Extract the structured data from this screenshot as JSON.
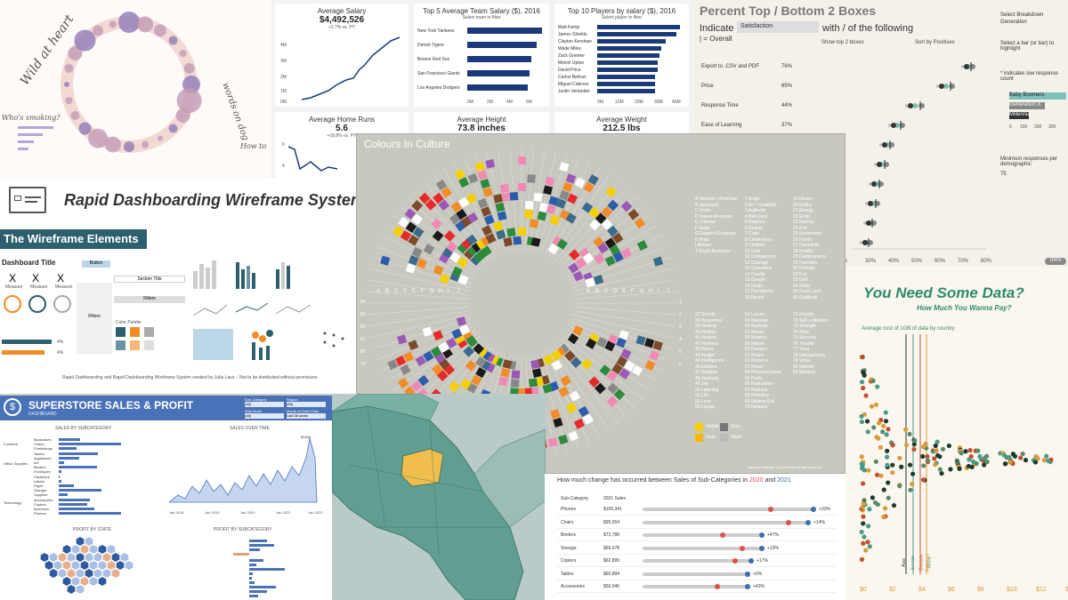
{
  "p1": {
    "title": "Wild at heart",
    "side_text": "words on dog",
    "smoking": "Who's smoking?",
    "howto": "How to"
  },
  "p2": {
    "salary_title": "Average Salary",
    "salary_value": "$4,492,526",
    "salary_sub": "+2.7% vs. PY",
    "team_title": "Top 5 Average Team Salary ($), 2016",
    "team_sub": "Select team to filter",
    "teams": [
      "New York Yankees",
      "Detroit Tigers",
      "Boston Red Sox",
      "San Francisco Giants",
      "Los Angeles Dodgers"
    ],
    "team_values": [
      7.5,
      6.9,
      6.4,
      6.2,
      6.0
    ],
    "team_axis": [
      "0M",
      "2M",
      "4M",
      "6M"
    ],
    "players_title": "Top 10 Players by salary ($), 2016",
    "players_sub": "Select player to filter",
    "players": [
      "Matt Kemp",
      "James Shields",
      "Clayton Kershaw",
      "Wade Miley",
      "Zack Greinke",
      "Melvin Upton",
      "David Price",
      "Carlos Beltran",
      "Miguel Cabrera",
      "Justin Verlander"
    ],
    "player_values": [
      40,
      38,
      33,
      31,
      30,
      29,
      29,
      28,
      28,
      28
    ],
    "player_axis": [
      "0M",
      "10M",
      "20M",
      "30M",
      "40M"
    ],
    "y_axis": [
      "4M",
      "3M",
      "2M",
      "1M",
      "0M"
    ],
    "hr_title": "Average Home Runs",
    "hr_value": "5.6",
    "hr_sub": "+16.8% vs. PY",
    "height_title": "Average Height",
    "height_value": "73.8 inches",
    "weight_title": "Average Weight",
    "weight_value": "212.5 lbs",
    "hr_axis": [
      "6",
      "4"
    ]
  },
  "p3": {
    "title": "Percent Top / Bottom 2 Boxes",
    "indicate": "Indicate",
    "indicate_value": "Satisfaction",
    "with_text": "with / of the following",
    "overall": "| = Overall",
    "show_top": "Show top 2 boxes",
    "sort_by": "Sort by Positives",
    "rows": [
      {
        "label": "Export to .CSV and PDF",
        "pct": "76%"
      },
      {
        "label": "Price",
        "pct": "65%"
      },
      {
        "label": "Response Time",
        "pct": "44%"
      },
      {
        "label": "Ease of Learning",
        "pct": "37%"
      }
    ],
    "breakdown_label": "Select Breakdown",
    "breakdown_value": "Generation",
    "select_bar": "Select a bar (or bar) to highlight",
    "low_response": "* indicates low response count",
    "legend": [
      "Baby Boomers",
      "Generation X",
      "Millennials"
    ],
    "legend_axis": [
      "0",
      "100",
      "200",
      "300"
    ],
    "min_resp": "Minimum responses per demographic",
    "min_value": "75",
    "x_axis": [
      "30%",
      "40%",
      "50%",
      "60%",
      "70%",
      "80%"
    ],
    "partial_x": "0%",
    "data_badge": "DATA"
  },
  "p4": {
    "title": "Rapid Dashboarding Wireframe System",
    "elements": "The Wireframe Elements",
    "dash_title": "Dashboard Title",
    "button": "Button",
    "section_title": "Section Title",
    "filters": "Filters",
    "filters2": "Filters",
    "color_palette": "Color Palette",
    "measure": "Measure",
    "credit": "Rapid Dashboarding and Rapid Dashboarding Wireframe System created by Julia Laux – Not to be distributed without permission.",
    "x_glyph": "X",
    "pct_a": "4%",
    "pct_b": "4%"
  },
  "p5": {
    "title": "Colours In Culture",
    "cultures": [
      "A Western / American",
      "B Japanese",
      "C Hindu",
      "D Native American",
      "E Chinese",
      "F Asian",
      "G Eastern European",
      "H Arab",
      "I African",
      "J South American"
    ],
    "col2": [
      "1 Anger",
      "2 Art / Creativity",
      "3 Authority",
      "4 Bad Luck",
      "5 Balance",
      "6 Beauty",
      "7 Calm",
      "8 Celebration",
      "9 Children",
      "10 Cold",
      "11 Compassion",
      "12 Courage",
      "13 Cowardice",
      "14 Cruelty",
      "15 Danger",
      "16 Death",
      "17 Decadence",
      "18 Deceit"
    ],
    "col3": [
      "19 Desire",
      "20 Earthy",
      "21 Energy",
      "22 Erotic",
      "23 Eternity",
      "24 Evil",
      "25 Excitement",
      "26 Family",
      "27 Femininity",
      "28 Fertility",
      "29 Flamboyance",
      "30 Freedom",
      "31 Friendly",
      "32 Fun",
      "33 God",
      "34 Gods",
      "35 Good Luck",
      "36 Gratitude"
    ],
    "col4": [
      "37 Growth",
      "38 Happiness",
      "39 Healing",
      "40 Healthy",
      "41 Heaven",
      "42 Holiness",
      "43 Illness",
      "44 Insight",
      "45 Intelligence",
      "46 Intuition",
      "47 Religion",
      "48 Jealousy",
      "49 Joy",
      "50 Learning",
      "51 Life",
      "52 Love",
      "53 Loyalty"
    ],
    "col5": [
      "54 Luxury",
      "55 Marriage",
      "56 Modesty",
      "57 Money",
      "58 Mystery",
      "59 Nature",
      "60 Passion",
      "61 Peace",
      "62 Penance",
      "63 Power",
      "64 Personal power",
      "65 Purity",
      "66 Radicalism",
      "67 Rational",
      "68 Rebellion",
      "69 Rejects Evil",
      "70 Respect"
    ],
    "col6": [
      "71 Royalty",
      "72 Self-cultivation",
      "73 Strength",
      "74 Style",
      "75 Success",
      "76 Trouble",
      "77 Trust",
      "78 Unhappiness",
      "79 Virtue",
      "80 Warmth",
      "81 Wisdom"
    ],
    "legend": [
      {
        "name": "Yellow",
        "color": "#f5d000"
      },
      {
        "name": "Grey",
        "color": "#777777"
      },
      {
        "name": "Gold",
        "color": "#f5b800"
      },
      {
        "name": "Silver",
        "color": "#bbbbbb"
      }
    ],
    "credit": "David McCandless & ideas@infoBEAUTIFUL.net // v1.0 // Apr 09 // InformationIsBeautiful.net",
    "source": "source: Pantone, ColorMatters & web sources",
    "letters": [
      "A",
      "B",
      "C",
      "D",
      "E",
      "F",
      "G",
      "H",
      "I",
      "J"
    ],
    "nums_left": [
      "84",
      "83",
      "82",
      "81",
      "80",
      "79"
    ],
    "nums_right": [
      "1",
      "2",
      "3",
      "4",
      "5",
      "6"
    ],
    "colors": [
      "#e62a2a",
      "#f5d000",
      "#2e8b3e",
      "#2c5cab",
      "#1a1a1a",
      "#ffffff",
      "#9b59b6",
      "#f08ab4",
      "#f28c28",
      "#7a4a2a",
      "#3a6b8a",
      "#888888"
    ]
  },
  "p6": {
    "title": "SUPERSTORE SALES & PROFIT",
    "subtitle": "DASHBOARD",
    "sales_sub": "SALES BY SUBCATEGORY",
    "sales_time": "SALES OVER TIME",
    "profit_state": "PROFIT BY STATE",
    "profit_sub": "PROFIT BY SUBCATEGORY",
    "filter1": "Sub-Category",
    "filter2": "Region",
    "filter3": "Ship Mode",
    "filter4": "Month of Order Date",
    "filter_val": "(All)",
    "filter_val2": "Last 36 years",
    "groups": [
      "Furniture",
      "Office Supplies",
      "Technology"
    ],
    "cats": [
      "Bookcases",
      "Chairs",
      "Furnishings",
      "Tables",
      "Appliances",
      "Art",
      "Binders",
      "Envelopes",
      "Fasteners",
      "Labels",
      "Paper",
      "Storage",
      "Supplies",
      "Accessories",
      "Copiers",
      "Machines",
      "Phones"
    ],
    "cat_values": [
      115,
      328,
      92,
      207,
      108,
      27,
      203,
      16,
      3,
      12,
      79,
      224,
      47,
      167,
      150,
      189,
      330
    ],
    "years": [
      "Jan 2018",
      "Jan 2019",
      "Jan 2020",
      "Jan 2021",
      "Jan 2022"
    ],
    "peak": "$118K"
  },
  "p8": {
    "title_pre": "How much change has occurred between Sales of Sub-Categories in ",
    "y1": "2020",
    "and": " and ",
    "y2": "2021",
    "col1": "Sub-Category",
    "col2": "2021 Sales",
    "rows": [
      {
        "cat": "Phones",
        "sales": "$105,341",
        "change": "+33%",
        "a": 0.72,
        "b": 0.96
      },
      {
        "cat": "Chairs",
        "sales": "$95,554",
        "change": "+14%",
        "a": 0.82,
        "b": 0.93
      },
      {
        "cat": "Binders",
        "sales": "$72,788",
        "change": "+47%",
        "a": 0.45,
        "b": 0.67
      },
      {
        "cat": "Storage",
        "sales": "$69,678",
        "change": "+19%",
        "a": 0.56,
        "b": 0.67
      },
      {
        "cat": "Copiers",
        "sales": "$62,899",
        "change": "+17%",
        "a": 0.52,
        "b": 0.61
      },
      {
        "cat": "Tables",
        "sales": "$60,894",
        "change": "+0%",
        "a": 0.59,
        "b": 0.59
      },
      {
        "cat": "Accessories",
        "sales": "$59,946",
        "change": "+43%",
        "a": 0.42,
        "b": 0.59
      }
    ]
  },
  "p9": {
    "title": "You Need Some Data?",
    "subtitle": "How Much You Wanna Pay?",
    "caption": "Average cost of 1GB of data by country",
    "x_axis": [
      "$0",
      "$2",
      "$4",
      "$6",
      "$8",
      "$10",
      "$12",
      "$1"
    ],
    "regions": [
      "Asia",
      "Europe",
      "Oceania",
      "Americas",
      "Africa"
    ],
    "region_colors": [
      "#1f3b2e",
      "#4a9b8a",
      "#c1502e",
      "#d99b3a",
      "#5b8a6b"
    ]
  }
}
